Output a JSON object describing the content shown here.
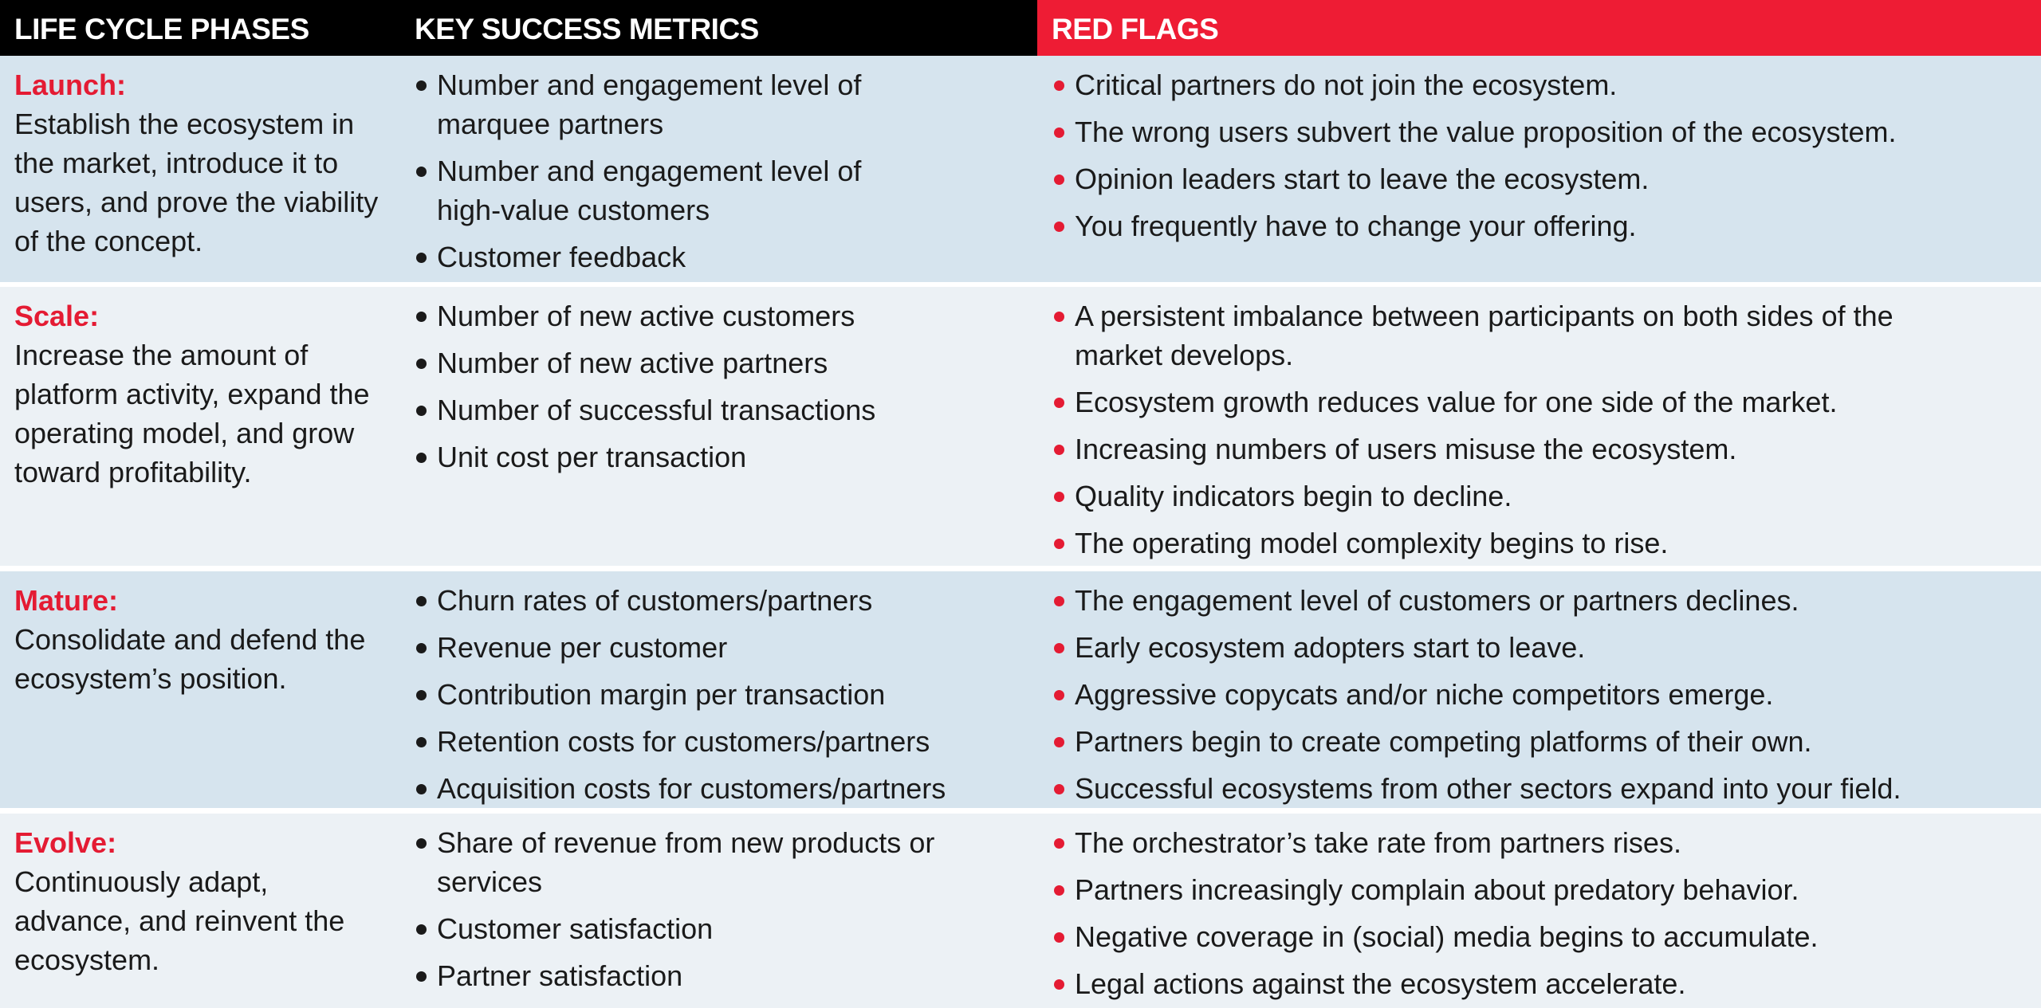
{
  "header": {
    "col1": "LIFE CYCLE PHASES",
    "col2": "KEY SUCCESS METRICS",
    "col3": "RED FLAGS"
  },
  "colors": {
    "header_black": "#000000",
    "header_red": "#ee1c34",
    "phase_red": "#e41b33",
    "row_blue": "#d6e4ee",
    "row_light": "#ecf1f5"
  },
  "rows": [
    {
      "phase": "Launch:",
      "description": "Establish the ecosystem in the market, introduce it to users, and prove the viability of the concept.",
      "metrics": [
        "Number and engagement level of marquee partners",
        "Number and engagement level of high-value customers",
        "Customer feedback"
      ],
      "red_flags": [
        "Critical partners do not join the ecosystem.",
        "The wrong users subvert the value proposition of the ecosystem.",
        "Opinion leaders start to leave the ecosystem.",
        "You frequently have to change your offering."
      ]
    },
    {
      "phase": "Scale:",
      "description": "Increase the amount of platform activity, expand the operating model, and grow toward profitability.",
      "metrics": [
        "Number of new active customers",
        "Number of new active partners",
        "Number of successful transactions",
        "Unit cost per transaction"
      ],
      "red_flags": [
        "A persistent imbalance between participants on both sides of the market develops.",
        "Ecosystem growth reduces value for one side of the market.",
        "Increasing numbers of users misuse the ecosystem.",
        "Quality indicators begin to decline.",
        "The operating model complexity begins to rise."
      ]
    },
    {
      "phase": "Mature:",
      "description": "Consolidate and defend the ecosystem’s position.",
      "metrics": [
        "Churn rates of customers/partners",
        "Revenue per customer",
        "Contribution margin per transaction",
        "Retention costs for customers/partners",
        "Acquisition costs for customers/partners"
      ],
      "red_flags": [
        "The engagement level of customers or partners declines.",
        "Early ecosystem adopters start to leave.",
        "Aggressive copycats and/or niche competitors emerge.",
        "Partners begin to create competing platforms of their own.",
        "Successful ecosystems from other sectors expand into your field."
      ]
    },
    {
      "phase": "Evolve:",
      "description": "Continuously adapt, advance, and reinvent the ecosystem.",
      "metrics": [
        "Share of revenue from new products or services",
        "Customer satisfaction",
        "Partner satisfaction"
      ],
      "red_flags": [
        "The orchestrator’s take rate from partners rises.",
        "Partners increasingly complain about predatory behavior.",
        "Negative coverage in (social) media begins to accumulate.",
        "Legal actions against the ecosystem accelerate."
      ]
    }
  ]
}
